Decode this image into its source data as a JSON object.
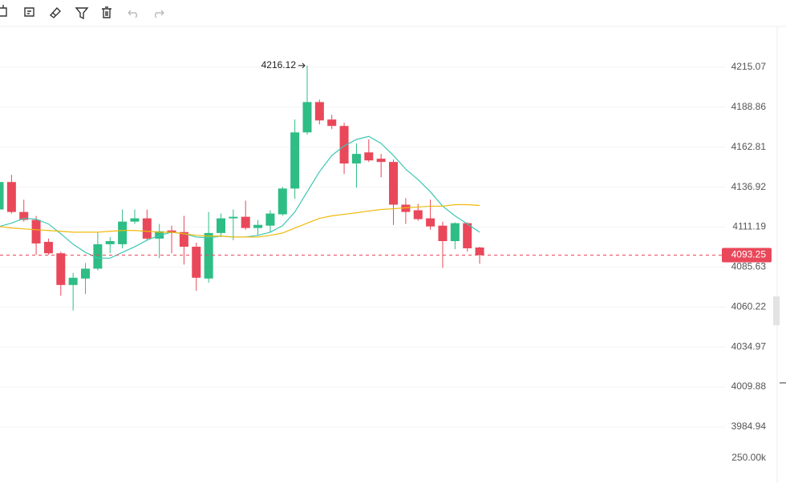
{
  "chart_data": {
    "type": "candlestick",
    "log_scale": true,
    "grid": true,
    "up_color": "#2ebd85",
    "down_color": "#e9485a",
    "ylim": [
      3971.5,
      4241.98
    ],
    "yticks": [
      4215.07,
      4188.86,
      4162.81,
      4136.92,
      4111.19,
      4085.63,
      4060.22,
      4034.97,
      4009.88,
      3984.94
    ],
    "volume_yticks": [
      {
        "value": 250000,
        "label": "250.00k"
      }
    ],
    "open": [
      4122.5,
      4140.2,
      4120.9,
      4115.8,
      4101.7,
      4094.4,
      4074.2,
      4078.3,
      4084.6,
      4100.2,
      4100.2,
      4114.7,
      4116.8,
      4103.8,
      4109.0,
      4108.0,
      4098.6,
      4078.3,
      4107.4,
      4116.8,
      4117.8,
      4110.6,
      4112.1,
      4119.4,
      4136.0,
      4172.4,
      4192.2,
      4180.8,
      4176.6,
      4152.2,
      4159.4,
      4155.3,
      4153.2,
      4125.6,
      4122.0,
      4116.8,
      4112.1,
      4102.2,
      4113.7,
      4098.1
    ],
    "high": [
      4140.2,
      4144.9,
      4128.8,
      4118.4,
      4103.8,
      4095.5,
      4081.9,
      4088.2,
      4107.9,
      4104.8,
      4122.5,
      4122.5,
      4122.5,
      4113.2,
      4112.1,
      4118.4,
      4101.2,
      4120.9,
      4119.9,
      4122.5,
      4128.2,
      4115.8,
      4122.0,
      4137.1,
      4180.8,
      4216.12,
      4193.8,
      4183.9,
      4178.7,
      4165.2,
      4167.8,
      4158.4,
      4154.8,
      4129.8,
      4126.2,
      4128.8,
      4114.7,
      4114.2,
      4114.2,
      4098.6
    ],
    "low": [
      4122.5,
      4119.9,
      4114.7,
      4093.4,
      4093.4,
      4067.4,
      4058.0,
      4068.4,
      4083.5,
      4094.4,
      4097.6,
      4113.2,
      4102.8,
      4091.3,
      4094.4,
      4087.2,
      4070.5,
      4075.7,
      4104.8,
      4102.8,
      4109.5,
      4105.9,
      4107.9,
      4118.4,
      4129.3,
      4170.9,
      4177.6,
      4174.5,
      4145.4,
      4136.6,
      4153.2,
      4143.3,
      4112.6,
      4113.2,
      4115.2,
      4109.5,
      4085.1,
      4097.0,
      4095.5,
      4087.7
    ],
    "close": [
      4140.2,
      4120.9,
      4115.8,
      4100.7,
      4094.4,
      4074.2,
      4078.8,
      4084.6,
      4100.2,
      4102.2,
      4114.7,
      4116.8,
      4103.8,
      4108.5,
      4107.4,
      4098.6,
      4078.8,
      4107.4,
      4116.8,
      4117.8,
      4110.6,
      4112.6,
      4119.9,
      4136.0,
      4172.4,
      4192.2,
      4180.2,
      4176.6,
      4152.2,
      4158.4,
      4154.2,
      4153.2,
      4125.6,
      4120.9,
      4116.3,
      4111.6,
      4102.2,
      4113.7,
      4097.6,
      4093.25
    ],
    "series": [
      {
        "color": "#3cc7b4",
        "values": [
          4111.6,
          4113.7,
          4116.8,
          4116.3,
          4113.2,
          4106.9,
          4100.2,
          4095.0,
          4091.3,
          4091.3,
          4095.0,
          4098.6,
          4102.8,
          4105.9,
          4107.9,
          4106.9,
          4104.8,
          4104.3,
          4105.4,
          4104.8,
          4104.8,
          4105.9,
          4107.9,
          4112.1,
          4120.9,
          4133.9,
          4146.9,
          4157.4,
          4163.6,
          4167.8,
          4169.8,
          4165.2,
          4157.4,
          4148.5,
          4141.8,
          4133.9,
          4124.6,
          4118.4,
          4113.2,
          4107.9
        ]
      },
      {
        "color": "#f0b90b",
        "values": [
          4111.6,
          4110.6,
          4110.0,
          4109.5,
          4109.0,
          4108.5,
          4107.9,
          4107.9,
          4107.9,
          4108.5,
          4109.0,
          4109.0,
          4108.5,
          4107.9,
          4107.9,
          4106.9,
          4105.9,
          4105.4,
          4105.4,
          4104.8,
          4104.8,
          4104.8,
          4105.9,
          4107.4,
          4110.6,
          4113.7,
          4116.8,
          4118.4,
          4119.4,
          4120.4,
          4121.5,
          4122.5,
          4123.0,
          4123.6,
          4124.1,
          4124.6,
          4124.6,
          4125.6,
          4125.6,
          4125.1
        ]
      }
    ]
  }
}
